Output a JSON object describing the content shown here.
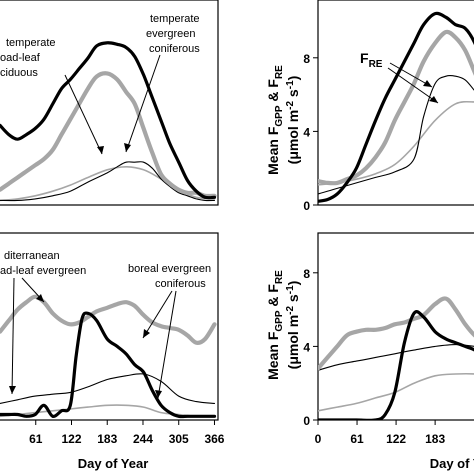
{
  "colors": {
    "gpp": "#000000",
    "gpp_gray": "#a6a6a6",
    "re_thin": "#000000",
    "re_gray": "#a6a6a6"
  },
  "y_axis_label_main": "Mean F",
  "y_axis_label_sub1": "GPP",
  "y_axis_label_mid": " & F",
  "y_axis_label_sub2": "RE",
  "y_axis_units_1": "(μmol m",
  "y_axis_units_exp1": "-2",
  "y_axis_units_2": " s",
  "y_axis_units_exp2": "-1",
  "y_axis_units_3": ")",
  "x_axis_label": "Day of Year",
  "chart_data": [
    {
      "type": "line",
      "panel": "top-left",
      "xlim": [
        0,
        366
      ],
      "ylim": [
        0,
        11
      ],
      "annotations": [
        "temperate",
        "oad-leaf",
        "ciduous",
        "temperate",
        "evergreen",
        "coniferous"
      ],
      "series": [
        {
          "x": [
            0,
            15,
            30,
            45,
            60,
            75,
            90,
            105,
            120,
            135,
            150,
            165,
            183,
            200,
            215,
            230,
            245,
            260,
            275,
            290,
            305,
            320,
            335,
            350,
            366
          ],
          "values": [
            5.2,
            4.6,
            4.3,
            4.6,
            5.0,
            5.6,
            6.6,
            7.6,
            8.2,
            8.9,
            9.6,
            10.4,
            10.6,
            10.5,
            10.3,
            9.7,
            8.5,
            7.0,
            5.5,
            4.0,
            2.8,
            1.6,
            0.9,
            0.5,
            0.5
          ]
        },
        {
          "x": [
            0,
            15,
            30,
            45,
            60,
            75,
            90,
            105,
            120,
            135,
            150,
            165,
            183,
            200,
            215,
            230,
            245,
            260,
            275,
            290,
            305,
            320,
            335,
            350,
            366
          ],
          "values": [
            1.0,
            1.4,
            1.8,
            2.2,
            2.6,
            3.0,
            3.6,
            4.6,
            5.6,
            6.6,
            7.6,
            8.4,
            8.6,
            8.2,
            7.4,
            6.6,
            5.0,
            3.4,
            2.0,
            1.4,
            1.0,
            0.8,
            0.8,
            0.6,
            0.6
          ]
        },
        {
          "x": [
            0,
            30,
            60,
            90,
            120,
            150,
            183,
            200,
            215,
            230,
            245,
            260,
            275,
            290,
            305,
            320,
            335,
            350,
            366
          ],
          "values": [
            0.3,
            0.3,
            0.4,
            0.6,
            0.9,
            1.5,
            2.1,
            2.5,
            2.8,
            2.8,
            2.8,
            2.4,
            1.7,
            1.2,
            0.8,
            0.6,
            0.4,
            0.3,
            0.3
          ]
        },
        {
          "x": [
            0,
            30,
            60,
            90,
            120,
            150,
            183,
            215,
            245,
            275,
            305,
            335,
            366
          ],
          "values": [
            0.3,
            0.4,
            0.6,
            0.9,
            1.3,
            1.8,
            2.3,
            2.5,
            2.3,
            1.7,
            1.0,
            0.5,
            0.4
          ]
        }
      ]
    },
    {
      "type": "line",
      "panel": "top-right",
      "xlim": [
        0,
        366
      ],
      "ylim": [
        0,
        11
      ],
      "yticks": [
        0,
        4,
        8
      ],
      "annotations": [
        "FRE"
      ],
      "series": [
        {
          "x": [
            0,
            15,
            30,
            45,
            60,
            75,
            90,
            105,
            120,
            135,
            150,
            165,
            183,
            200,
            215,
            230,
            245,
            260
          ],
          "values": [
            0.2,
            0.3,
            0.6,
            1.2,
            2.0,
            3.3,
            4.6,
            5.8,
            6.8,
            7.8,
            8.8,
            9.8,
            10.4,
            10.2,
            9.8,
            9.6,
            8.8,
            7.4
          ]
        },
        {
          "x": [
            0,
            15,
            30,
            45,
            60,
            75,
            90,
            105,
            120,
            135,
            150,
            165,
            183,
            200,
            215,
            230,
            245,
            260
          ],
          "values": [
            1.3,
            1.2,
            1.2,
            1.4,
            1.6,
            2.0,
            2.6,
            3.4,
            4.6,
            5.6,
            6.6,
            7.8,
            8.8,
            9.4,
            9.1,
            8.4,
            7.2,
            6.0
          ]
        },
        {
          "x": [
            0,
            30,
            60,
            90,
            120,
            150,
            165,
            183,
            200,
            215,
            230,
            245,
            260
          ],
          "values": [
            0.6,
            0.9,
            1.2,
            1.5,
            1.8,
            2.5,
            4.8,
            6.6,
            7.0,
            7.0,
            6.8,
            6.2,
            5.6
          ]
        },
        {
          "x": [
            0,
            30,
            60,
            90,
            120,
            150,
            183,
            215,
            245,
            260
          ],
          "values": [
            1.1,
            1.2,
            1.4,
            1.7,
            2.2,
            3.2,
            4.6,
            5.5,
            5.6,
            5.5
          ]
        }
      ]
    },
    {
      "type": "line",
      "panel": "bottom-left",
      "xlim": [
        0,
        366
      ],
      "ylim": [
        0,
        11
      ],
      "xticks": [
        61,
        122,
        183,
        244,
        305,
        366
      ],
      "xticklabels": [
        "61",
        "122",
        "183",
        "244",
        "305",
        "366"
      ],
      "annotations": [
        "diterranean",
        "ad-leaf evergreen",
        "boreal evergreen",
        "coniferous"
      ],
      "series": [
        {
          "x": [
            0,
            15,
            30,
            45,
            60,
            75,
            90,
            105,
            120,
            130,
            140,
            150,
            165,
            183,
            200,
            215,
            230,
            245,
            260,
            275,
            290,
            305,
            320,
            335,
            350,
            366
          ],
          "values": [
            0.3,
            0.3,
            0.3,
            0.2,
            0.3,
            0.8,
            0.2,
            0.5,
            0.8,
            3.5,
            5.5,
            5.8,
            5.4,
            4.4,
            4.0,
            3.6,
            3.0,
            2.6,
            1.6,
            0.8,
            0.4,
            0.2,
            0.2,
            0.2,
            0.2,
            0.2
          ]
        },
        {
          "x": [
            0,
            15,
            30,
            45,
            60,
            75,
            90,
            105,
            120,
            135,
            150,
            165,
            183,
            200,
            215,
            230,
            245,
            260,
            275,
            290,
            305,
            320,
            335,
            350,
            366
          ],
          "values": [
            4.8,
            5.4,
            6.0,
            6.4,
            6.7,
            6.4,
            5.8,
            5.4,
            5.2,
            5.3,
            5.6,
            5.9,
            6.1,
            6.3,
            6.4,
            6.2,
            5.7,
            5.3,
            5.1,
            5.0,
            4.9,
            4.6,
            4.2,
            4.4,
            5.2
          ]
        },
        {
          "x": [
            0,
            30,
            60,
            90,
            120,
            150,
            183,
            215,
            245,
            275,
            305,
            335,
            366
          ],
          "values": [
            0.9,
            1.1,
            1.3,
            1.4,
            1.5,
            1.8,
            2.2,
            2.4,
            2.5,
            2.1,
            1.3,
            1.0,
            0.9
          ]
        },
        {
          "x": [
            0,
            30,
            60,
            90,
            120,
            150,
            183,
            215,
            245,
            275,
            305,
            335,
            366
          ],
          "values": [
            0.2,
            0.3,
            0.4,
            0.5,
            0.6,
            0.7,
            0.8,
            0.8,
            0.7,
            0.4,
            0.3,
            0.2,
            0.2
          ]
        }
      ]
    },
    {
      "type": "line",
      "panel": "bottom-right",
      "xlim": [
        0,
        366
      ],
      "ylim": [
        0,
        11
      ],
      "yticks": [
        0,
        4,
        8
      ],
      "xticks": [
        0,
        61,
        122,
        183
      ],
      "xticklabels": [
        "0",
        "61",
        "122",
        "183"
      ],
      "series": [
        {
          "x": [
            0,
            30,
            60,
            90,
            105,
            120,
            135,
            150,
            165,
            183,
            200,
            215,
            230,
            245,
            260
          ],
          "values": [
            0.0,
            0.0,
            0.0,
            0.0,
            0.3,
            1.5,
            4.2,
            5.8,
            5.6,
            4.8,
            4.4,
            4.2,
            4.0,
            3.8,
            3.4
          ]
        },
        {
          "x": [
            0,
            15,
            30,
            45,
            60,
            75,
            90,
            105,
            120,
            135,
            150,
            165,
            183,
            200,
            215,
            230,
            245,
            260
          ],
          "values": [
            2.8,
            3.4,
            4.0,
            4.6,
            4.8,
            4.9,
            4.9,
            5.0,
            5.2,
            5.3,
            5.5,
            5.7,
            6.3,
            6.6,
            6.0,
            5.2,
            4.6,
            4.3
          ]
        },
        {
          "x": [
            0,
            30,
            60,
            90,
            120,
            150,
            183,
            215,
            245,
            260
          ],
          "values": [
            2.7,
            3.0,
            3.2,
            3.4,
            3.6,
            3.8,
            4.0,
            4.1,
            4.0,
            3.9
          ]
        },
        {
          "x": [
            0,
            30,
            60,
            90,
            120,
            150,
            183,
            215,
            245,
            260
          ],
          "values": [
            0.5,
            0.7,
            0.9,
            1.2,
            1.5,
            2.0,
            2.4,
            2.5,
            2.5,
            2.4
          ]
        }
      ]
    }
  ]
}
